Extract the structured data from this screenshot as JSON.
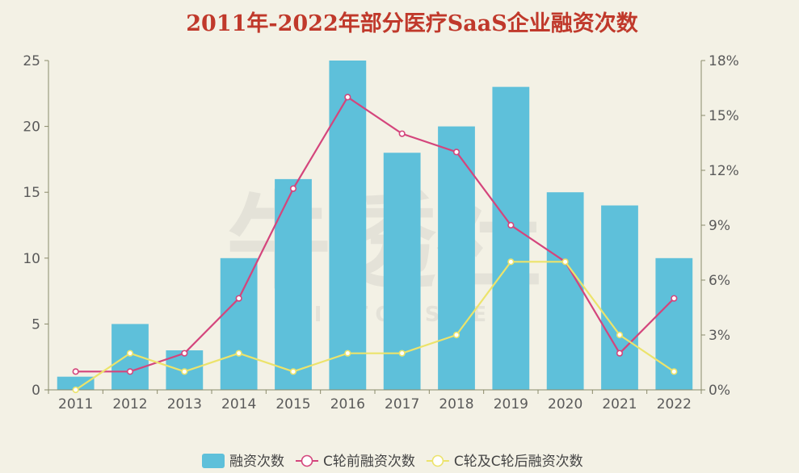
{
  "chart_data": {
    "type": "bar",
    "title": "2011年-2022年部分医疗SaaS企业融资次数",
    "categories": [
      "2011",
      "2012",
      "2013",
      "2014",
      "2015",
      "2016",
      "2017",
      "2018",
      "2019",
      "2020",
      "2021",
      "2022"
    ],
    "series": [
      {
        "name": "融资次数",
        "type": "bar",
        "axis": "left",
        "values": [
          1,
          5,
          3,
          10,
          16,
          25,
          18,
          20,
          23,
          15,
          14,
          10
        ],
        "color": "#5ec0da"
      },
      {
        "name": "C轮前融资次数",
        "type": "line",
        "axis": "right",
        "values": [
          1,
          1,
          2,
          5,
          11,
          16,
          14,
          13,
          9,
          7,
          2,
          5
        ],
        "color": "#d4457c"
      },
      {
        "name": "C轮及C轮后融资次数",
        "type": "line",
        "axis": "right",
        "values": [
          0,
          2,
          1,
          2,
          1,
          2,
          2,
          3,
          7,
          7,
          3,
          1
        ],
        "color": "#ece36b"
      }
    ],
    "y_left": {
      "min": 0,
      "max": 25,
      "ticks": [
        "0",
        "5",
        "10",
        "15",
        "20",
        "25"
      ]
    },
    "y_right": {
      "min": 0,
      "max": 18,
      "ticks": [
        "0%",
        "3%",
        "6%",
        "9%",
        "12%",
        "15%",
        "18%"
      ]
    },
    "grid": false,
    "legend_position": "bottom-center",
    "watermark": {
      "text": "牛透社",
      "subtext": "N I U T O U S H E"
    }
  }
}
